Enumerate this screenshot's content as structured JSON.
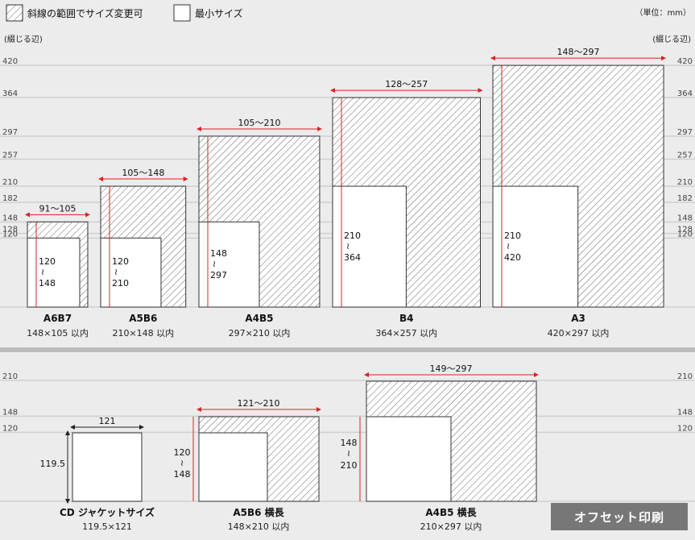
{
  "legend": {
    "hatched_label": "斜線の範囲でサイズ変更可",
    "plain_label": "最小サイズ",
    "unit": "（単位：mm）"
  },
  "axis": {
    "binding_edge_left": "(綴じる辺)",
    "binding_edge_right": "(綴じる辺)",
    "top_ticks": [
      "420",
      "364",
      "297",
      "257",
      "210",
      "182",
      "148",
      "128",
      "120"
    ],
    "bottom_ticks": [
      "210",
      "148",
      "120"
    ]
  },
  "top_row": [
    {
      "name": "A6B7",
      "caption": "148×105 以内",
      "width_range": "91〜105",
      "min_h": "120",
      "max_h": "148",
      "min_w": 91,
      "max_w": 105,
      "h_lo": 120,
      "h_hi": 148
    },
    {
      "name": "A5B6",
      "caption": "210×148 以内",
      "width_range": "105〜148",
      "min_h": "120",
      "max_h": "210",
      "min_w": 105,
      "max_w": 148,
      "h_lo": 120,
      "h_hi": 210
    },
    {
      "name": "A4B5",
      "caption": "297×210 以内",
      "width_range": "105〜210",
      "min_h": "148",
      "max_h": "297",
      "min_w": 105,
      "max_w": 210,
      "h_lo": 148,
      "h_hi": 297
    },
    {
      "name": "B4",
      "caption": "364×257 以内",
      "width_range": "128〜257",
      "min_h": "210",
      "max_h": "364",
      "min_w": 128,
      "max_w": 257,
      "h_lo": 210,
      "h_hi": 364
    },
    {
      "name": "A3",
      "caption": "420×297 以内",
      "width_range": "148〜297",
      "min_h": "210",
      "max_h": "420",
      "min_w": 148,
      "max_w": 297,
      "h_lo": 210,
      "h_hi": 420
    }
  ],
  "bottom_row": [
    {
      "name": "CD ジャケットサイズ",
      "caption": "119.5×121",
      "width_label": "121",
      "height_label": "119.5"
    },
    {
      "name": "A5B6 横長",
      "caption": "148×210 以内",
      "width_range": "121〜210",
      "min_h": "120",
      "max_h": "148"
    },
    {
      "name": "A4B5 横長",
      "caption": "210×297 以内",
      "width_range": "149〜297",
      "min_h": "148",
      "max_h": "210"
    }
  ],
  "badge": "オフセット印刷"
}
